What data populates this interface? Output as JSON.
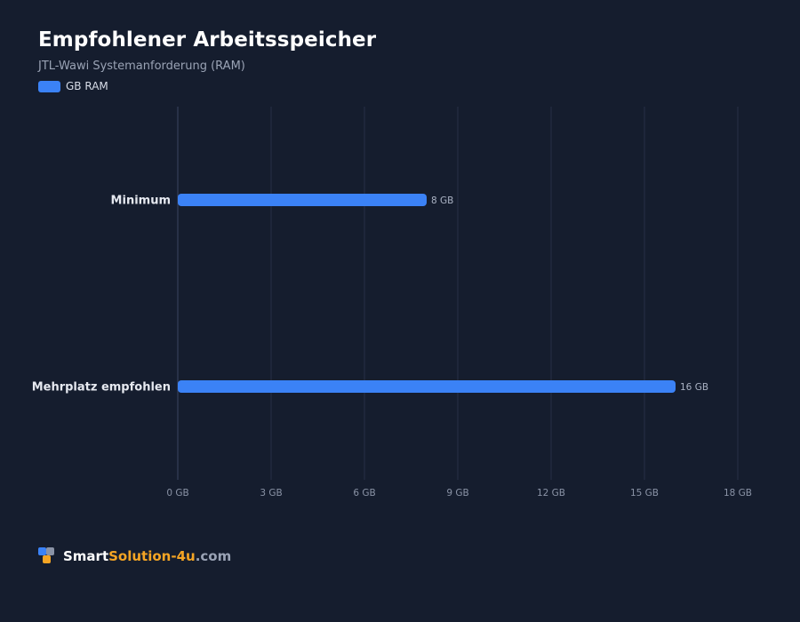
{
  "header": {
    "title": "Empfohlener Arbeitsspeicher",
    "subtitle": "JTL-Wawi Systemanforderung (RAM)",
    "legend_label": "GB RAM"
  },
  "colors": {
    "background": "#151d2e",
    "bar": "#3b82f6",
    "grid": "#263047",
    "logo_blue": "#3b82f6",
    "logo_gray": "#8a93a6",
    "logo_orange": "#f5a524"
  },
  "chart_data": {
    "type": "bar",
    "orientation": "horizontal",
    "categories": [
      "Minimum",
      "Mehrplatz empfohlen"
    ],
    "series": [
      {
        "name": "GB RAM",
        "values": [
          8,
          16
        ]
      }
    ],
    "data_labels": [
      "8 GB",
      "16 GB"
    ],
    "xlim": [
      0,
      18
    ],
    "xticks": [
      0,
      3,
      6,
      9,
      12,
      15,
      18
    ],
    "xtick_labels": [
      "0 GB",
      "3 GB",
      "6 GB",
      "9 GB",
      "12 GB",
      "15 GB",
      "18 GB"
    ],
    "grid": true,
    "legend_position": "top-left"
  },
  "footer": {
    "brand_part1": "Smart",
    "brand_part2": "Solution-4u",
    "brand_part3": ".com",
    "logo_icon": "logo-squares-icon"
  }
}
